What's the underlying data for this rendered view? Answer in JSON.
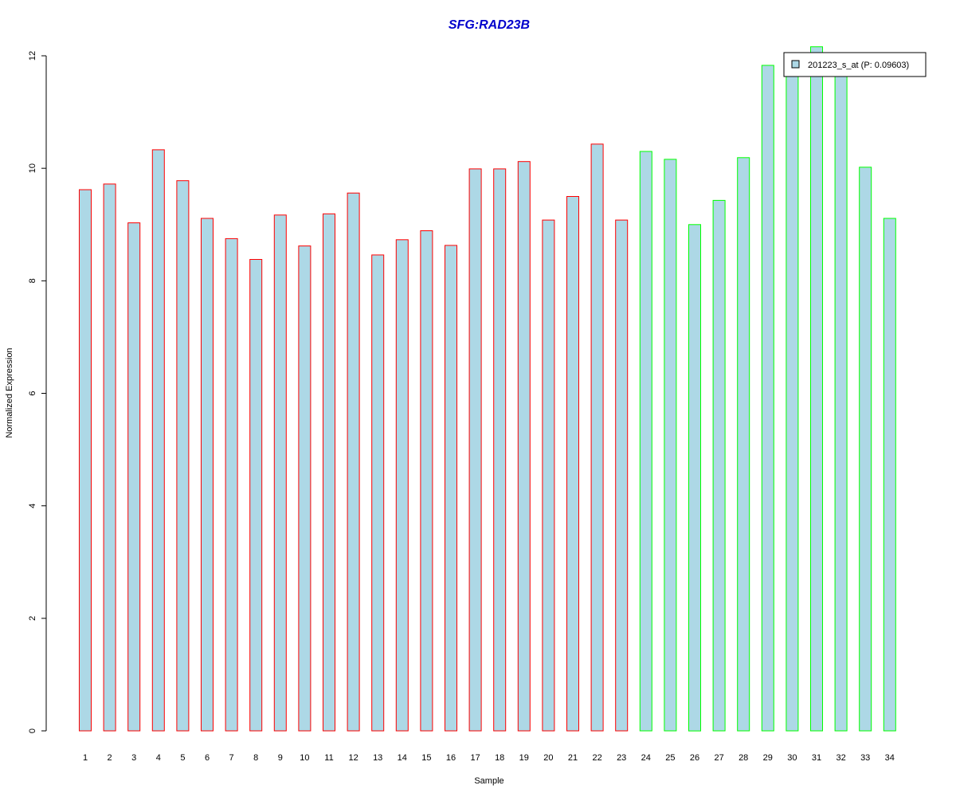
{
  "chart_data": {
    "type": "bar",
    "title": "SFG:RAD23B",
    "xlabel": "Sample",
    "ylabel": "Normalized Expression",
    "ylim": [
      0,
      12
    ],
    "yticks": [
      0,
      2,
      4,
      6,
      8,
      10,
      12
    ],
    "categories": [
      "1",
      "2",
      "3",
      "4",
      "5",
      "6",
      "7",
      "8",
      "9",
      "10",
      "11",
      "12",
      "13",
      "14",
      "15",
      "16",
      "17",
      "18",
      "19",
      "20",
      "21",
      "22",
      "23",
      "24",
      "25",
      "26",
      "27",
      "28",
      "29",
      "30",
      "31",
      "32",
      "33",
      "34"
    ],
    "values": [
      9.62,
      9.72,
      9.03,
      10.33,
      9.78,
      9.11,
      8.75,
      8.38,
      9.17,
      8.62,
      9.19,
      9.56,
      8.46,
      8.73,
      8.89,
      8.63,
      9.99,
      9.99,
      10.12,
      9.08,
      9.5,
      10.43,
      9.08,
      10.3,
      10.16,
      9.0,
      9.43,
      10.19,
      11.83,
      11.75,
      12.16,
      11.8,
      10.02,
      9.11
    ],
    "groups": [
      "red",
      "red",
      "red",
      "red",
      "red",
      "red",
      "red",
      "red",
      "red",
      "red",
      "red",
      "red",
      "red",
      "red",
      "red",
      "red",
      "red",
      "red",
      "red",
      "red",
      "red",
      "red",
      "red",
      "green",
      "green",
      "green",
      "green",
      "green",
      "green",
      "green",
      "green",
      "green",
      "green",
      "green"
    ],
    "series": [
      {
        "name": "201223_s_at (P: 0.09603)",
        "fill": "#add8e6"
      }
    ],
    "colors": {
      "bar_fill": "#add8e6",
      "border_red": "#ff0000",
      "border_green": "#00ff00",
      "title": "#0000cc",
      "axis": "#000000"
    },
    "legend_position": "top-right",
    "grid": false
  }
}
